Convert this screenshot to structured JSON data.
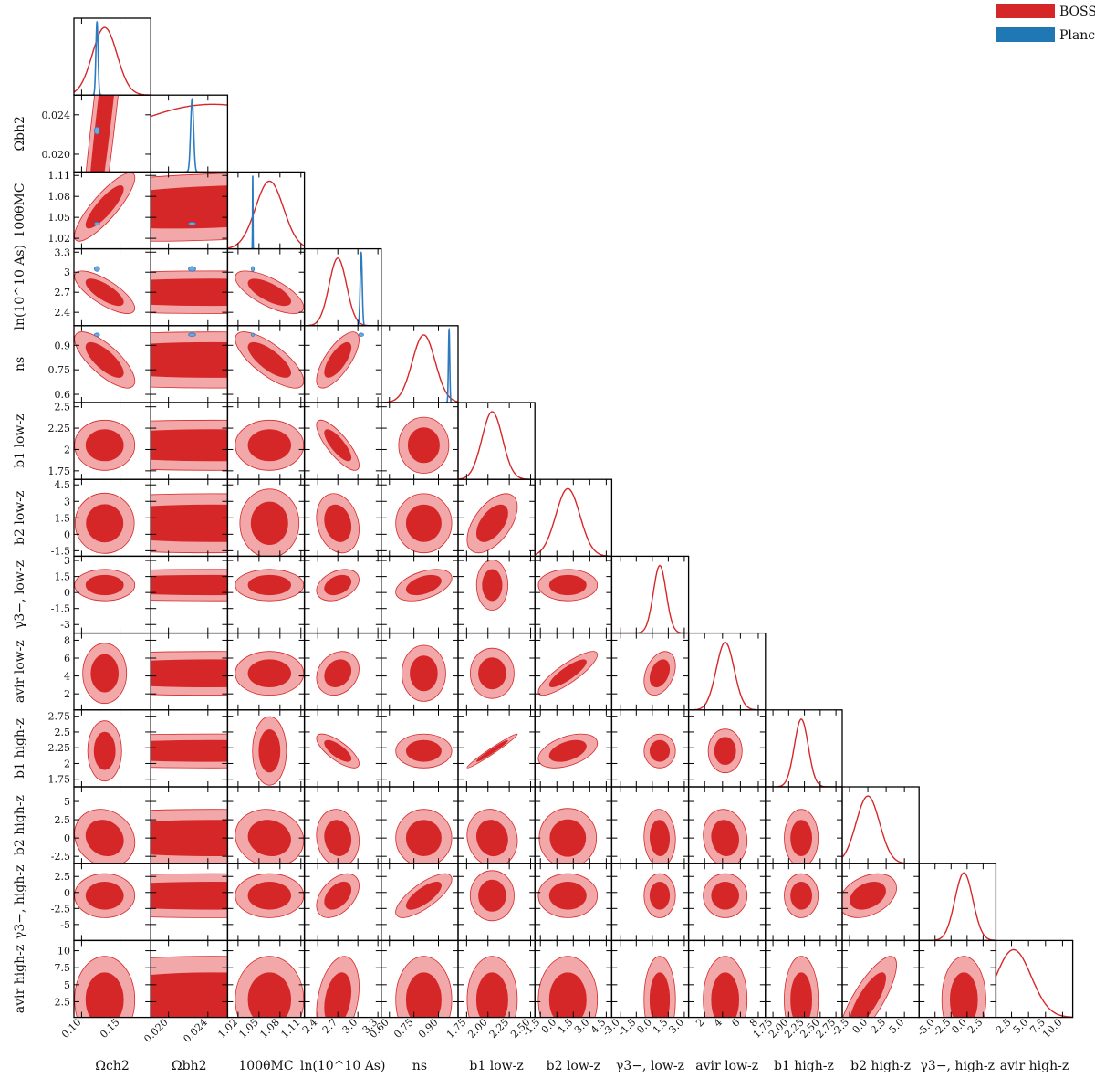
{
  "chart_data": {
    "type": "corner",
    "colors": {
      "outer": "#f2a7a9",
      "inner": "#d62728",
      "edge": "#d62728",
      "planck": "#2c7bc0"
    },
    "legend": {
      "placement": "top-right",
      "entries": [
        {
          "label": "BOSS",
          "color": "#d62728"
        },
        {
          "label": "Planck",
          "color": "#1f77b4"
        }
      ]
    },
    "params": [
      {
        "label": "Ωch2",
        "label_mathml": "Ω<tspan font-size='10' dy='4'>c</tspan><tspan dy='-4'>h</tspan><tspan font-size='10' dy='-6'>2</tspan>",
        "range": [
          0.09,
          0.19
        ],
        "mean": 0.13,
        "sd": 0.016,
        "ticks": [
          "0.10",
          "0.15"
        ],
        "planck_mean": 0.12,
        "planck_sd": 0.0014
      },
      {
        "label": "Ωbh2",
        "range": [
          0.0182,
          0.026
        ],
        "mean": 0.0245,
        "sd": 0.01,
        "ticks": [
          "0.020",
          "0.024"
        ],
        "planck_mean": 0.0224,
        "planck_sd": 0.00015
      },
      {
        "label": "100θMC",
        "range": [
          1.005,
          1.115
        ],
        "mean": 1.065,
        "sd": 0.02,
        "ticks": [
          "1.02",
          "1.05",
          "1.08",
          "1.11"
        ],
        "planck_mean": 1.041,
        "planck_sd": 0.0003
      },
      {
        "label": "ln(10^10 As)",
        "range": [
          2.2,
          3.35
        ],
        "mean": 2.7,
        "sd": 0.13,
        "ticks": [
          "2.4",
          "2.7",
          "3",
          "3.3"
        ],
        "planck_mean": 3.05,
        "planck_sd": 0.015
      },
      {
        "label": "ns",
        "range": [
          0.55,
          1.02
        ],
        "mean": 0.81,
        "sd": 0.07,
        "ticks": [
          "0.6",
          "0.75",
          "0.9"
        ],
        "planck_mean": 0.965,
        "planck_sd": 0.004
      },
      {
        "label": "b1 low-z",
        "range": [
          1.65,
          2.55
        ],
        "mean": 2.05,
        "sd": 0.12,
        "ticks": [
          "1.75",
          "2",
          "2.25",
          "2.5"
        ]
      },
      {
        "label": "b2 low-z",
        "range": [
          -2.0,
          5.0
        ],
        "mean": 1.0,
        "sd": 1.1,
        "ticks": [
          "-1.5",
          "0",
          "1.5",
          "3",
          "4.5"
        ]
      },
      {
        "label": "γ3−, low-z",
        "range": [
          -3.8,
          3.4
        ],
        "mean": 0.7,
        "sd": 0.6,
        "ticks": [
          "-3",
          "-1.5",
          "0",
          "1.5",
          "3"
        ]
      },
      {
        "label": "avir low-z",
        "range": [
          0.2,
          8.8
        ],
        "mean": 4.3,
        "sd": 1.0,
        "ticks": [
          "2",
          "4",
          "6",
          "8"
        ]
      },
      {
        "label": "b1 high-z",
        "range": [
          1.63,
          2.85
        ],
        "mean": 2.2,
        "sd": 0.11,
        "ticks": [
          "1.75",
          "2",
          "2.25",
          "2.5",
          "2.75"
        ]
      },
      {
        "label": "b2 high-z",
        "range": [
          -3.5,
          7.0
        ],
        "mean": 0.0,
        "sd": 1.6,
        "ticks": [
          "-2.5",
          "0",
          "2.5",
          "5"
        ]
      },
      {
        "label": "γ3−, high-z",
        "range": [
          -7.5,
          4.5
        ],
        "mean": -0.5,
        "sd": 1.4,
        "ticks": [
          "-5",
          "-2.5",
          "0",
          "2.5"
        ]
      },
      {
        "label": "avir high-z",
        "range": [
          0.2,
          11.5
        ],
        "mean": 2.8,
        "sd": 2.6,
        "ticks": [
          "2.5",
          "5",
          "7.5",
          "10"
        ]
      }
    ],
    "axis_tick_labels_x": [
      [
        "0.10",
        "0.15"
      ],
      [
        "0.020",
        "0.024"
      ],
      [
        "1.02",
        "1.05",
        "1.08",
        "1.11"
      ],
      [
        "2.4",
        "2.7",
        "3.0",
        "3.3"
      ],
      [
        "0.60",
        "0.75",
        "0.90"
      ],
      [
        "1.75",
        "2.00",
        "2.25",
        "2.50"
      ],
      [
        "-1.5",
        "0.0",
        "1.5",
        "3.0",
        "4.5"
      ],
      [
        "-3.0",
        "-1.5",
        "0.0",
        "1.5",
        "3.0"
      ],
      [
        "2",
        "4",
        "6",
        "8"
      ],
      [
        "1.75",
        "2.00",
        "2.25",
        "2.50",
        "2.75"
      ],
      [
        "-2.5",
        "0.0",
        "2.5",
        "5.0"
      ],
      [
        "-5.0",
        "-2.5",
        "0.0",
        "2.5"
      ],
      [
        "2.5",
        "5.0",
        "7.5",
        "10.0"
      ]
    ],
    "correlations": [
      [
        0
      ],
      [
        0.92,
        0
      ],
      [
        0.85,
        0.25,
        0
      ],
      [
        -0.75,
        0.0,
        -0.7,
        0
      ],
      [
        -0.75,
        0.0,
        -0.75,
        0.72,
        0
      ],
      [
        0.0,
        0.0,
        0.0,
        -0.8,
        0.0,
        0
      ],
      [
        0.0,
        0.0,
        0.0,
        -0.2,
        0.0,
        0.55,
        0
      ],
      [
        0.0,
        0.0,
        0.0,
        0.35,
        0.45,
        0.0,
        0.0,
        0
      ],
      [
        0.0,
        0.0,
        0.0,
        0.2,
        0.0,
        0.0,
        0.85,
        0.35,
        0
      ],
      [
        0.0,
        0.0,
        0.0,
        -0.75,
        0.0,
        0.98,
        0.45,
        0.0,
        0.0,
        0
      ],
      [
        -0.15,
        0.0,
        -0.1,
        -0.1,
        0.0,
        -0.1,
        0.0,
        -0.05,
        -0.1,
        0.0,
        0
      ],
      [
        0.0,
        0.0,
        0.0,
        0.45,
        0.75,
        0.0,
        0.0,
        0.0,
        0.0,
        0.0,
        0.35,
        0
      ],
      [
        0.0,
        0.0,
        0.0,
        0.3,
        0.0,
        0.0,
        0.0,
        0.0,
        0.0,
        0.0,
        0.8,
        0.0,
        0
      ]
    ]
  }
}
